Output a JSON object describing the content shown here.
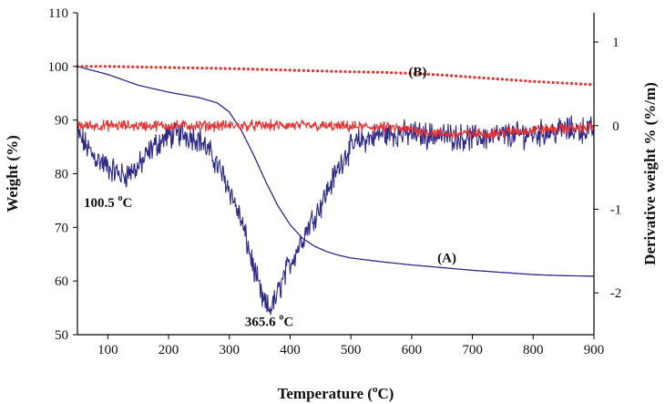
{
  "chart_data": {
    "type": "line",
    "xlabel_prefix": "Temperature (",
    "xlabel_sup": "o",
    "xlabel_suffix": "C)",
    "ylabel": "Weight (%)",
    "y2label": "Derivative weight % (%/m)",
    "xlim": [
      50,
      900
    ],
    "ylim": [
      50,
      110
    ],
    "y2lim": [
      -2.5,
      1.35
    ],
    "x_ticks": [
      100,
      200,
      300,
      400,
      500,
      600,
      700,
      800,
      900
    ],
    "y_ticks": [
      50,
      60,
      70,
      80,
      90,
      100,
      110
    ],
    "y2_ticks": [
      -2,
      -1,
      0,
      1
    ],
    "series": [
      {
        "name": "(A) TGA weight",
        "axis": "left",
        "color": "#2e2a86",
        "style": "solid",
        "x": [
          50,
          100,
          150,
          200,
          250,
          280,
          300,
          320,
          340,
          360,
          380,
          400,
          420,
          440,
          460,
          480,
          500,
          550,
          600,
          650,
          700,
          750,
          800,
          850,
          900
        ],
        "values": [
          100,
          98.5,
          96.5,
          95.2,
          94.2,
          93.2,
          91.5,
          88.0,
          83.5,
          78.5,
          74.0,
          70.5,
          68.0,
          66.5,
          65.5,
          64.8,
          64.3,
          63.6,
          63.0,
          62.5,
          62.0,
          61.6,
          61.2,
          61.0,
          60.9
        ]
      },
      {
        "name": "(A) DTG",
        "axis": "right",
        "color": "#2e2a86",
        "style": "noisy",
        "x": [
          50,
          75,
          100,
          125,
          150,
          175,
          200,
          225,
          250,
          275,
          300,
          320,
          340,
          355,
          365,
          375,
          390,
          410,
          430,
          450,
          470,
          490,
          510,
          550,
          600,
          650,
          700,
          750,
          800,
          850,
          900
        ],
        "values": [
          -0.1,
          -0.35,
          -0.5,
          -0.6,
          -0.5,
          -0.25,
          -0.12,
          -0.1,
          -0.15,
          -0.4,
          -0.75,
          -1.15,
          -1.7,
          -2.1,
          -2.2,
          -2.1,
          -1.8,
          -1.5,
          -1.2,
          -0.95,
          -0.65,
          -0.35,
          -0.2,
          -0.1,
          -0.1,
          -0.12,
          -0.15,
          -0.12,
          -0.1,
          -0.05,
          -0.05
        ],
        "noise": 0.12
      },
      {
        "name": "(B) TGA weight",
        "axis": "left",
        "color": "#e8312f",
        "style": "dotted",
        "x": [
          50,
          100,
          200,
          300,
          400,
          500,
          550,
          600,
          650,
          700,
          750,
          800,
          850,
          900
        ],
        "values": [
          100.0,
          100.0,
          99.8,
          99.6,
          99.3,
          99.0,
          98.9,
          98.7,
          98.4,
          98.0,
          97.6,
          97.2,
          96.9,
          96.6
        ]
      },
      {
        "name": "(B) DTG",
        "axis": "right",
        "color": "#e8312f",
        "style": "noisy",
        "x": [
          50,
          200,
          400,
          550,
          600,
          650,
          700,
          750,
          800,
          900
        ],
        "values": [
          0.0,
          0.0,
          0.0,
          -0.02,
          -0.05,
          -0.1,
          -0.1,
          -0.08,
          -0.05,
          -0.02
        ],
        "noise": 0.05
      }
    ],
    "annotations": [
      {
        "id": "peak1",
        "value": "100.5",
        "sup": "o",
        "unit": "C",
        "x": 100.5,
        "y": 73.8
      },
      {
        "id": "peak2",
        "value": "365.6",
        "sup": "o",
        "unit": "C",
        "x": 365.6,
        "y": 51.6
      },
      {
        "id": "label-a",
        "text": "(A)",
        "x": 658,
        "y": 63.5
      },
      {
        "id": "label-b",
        "text": "(B)",
        "x": 610,
        "y": 98.2
      }
    ]
  }
}
